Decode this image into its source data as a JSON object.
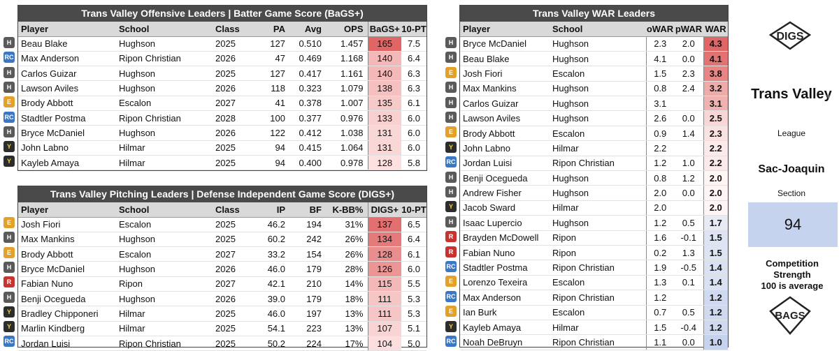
{
  "offense": {
    "title": "Trans Valley Offensive Leaders | Batter Game Score (BaGS+)",
    "headers": [
      "Player",
      "School",
      "Class",
      "PA",
      "Avg",
      "OPS",
      "BaGS+",
      "10-PT"
    ],
    "rows": [
      {
        "player": "Beau Blake",
        "school": "Hughson",
        "logo": "Hughson",
        "class": "2025",
        "pa": "127",
        "avg": "0.510",
        "ops": "1.457",
        "score": "165",
        "pt": "7.5",
        "score_val": 165
      },
      {
        "player": "Max Anderson",
        "school": "Ripon Christian",
        "logo": "Ripon Christian",
        "class": "2026",
        "pa": "47",
        "avg": "0.469",
        "ops": "1.168",
        "score": "140",
        "pt": "6.4",
        "score_val": 140
      },
      {
        "player": "Carlos Guizar",
        "school": "Hughson",
        "logo": "Hughson",
        "class": "2025",
        "pa": "127",
        "avg": "0.417",
        "ops": "1.161",
        "score": "140",
        "pt": "6.3",
        "score_val": 140
      },
      {
        "player": "Lawson Aviles",
        "school": "Hughson",
        "logo": "Hughson",
        "class": "2026",
        "pa": "118",
        "avg": "0.323",
        "ops": "1.079",
        "score": "138",
        "pt": "6.3",
        "score_val": 138
      },
      {
        "player": "Brody Abbott",
        "school": "Escalon",
        "logo": "Escalon",
        "class": "2027",
        "pa": "41",
        "avg": "0.378",
        "ops": "1.007",
        "score": "135",
        "pt": "6.1",
        "score_val": 135
      },
      {
        "player": "Stadtler Postma",
        "school": "Ripon Christian",
        "logo": "Ripon Christian",
        "class": "2028",
        "pa": "100",
        "avg": "0.377",
        "ops": "0.976",
        "score": "133",
        "pt": "6.0",
        "score_val": 133
      },
      {
        "player": "Bryce McDaniel",
        "school": "Hughson",
        "logo": "Hughson",
        "class": "2026",
        "pa": "122",
        "avg": "0.412",
        "ops": "1.038",
        "score": "131",
        "pt": "6.0",
        "score_val": 131
      },
      {
        "player": "John Labno",
        "school": "Hilmar",
        "logo": "Hilmar",
        "class": "2025",
        "pa": "94",
        "avg": "0.415",
        "ops": "1.064",
        "score": "131",
        "pt": "6.0",
        "score_val": 131
      },
      {
        "player": "Kayleb Amaya",
        "school": "Hilmar",
        "logo": "Hilmar",
        "class": "2025",
        "pa": "94",
        "avg": "0.400",
        "ops": "0.978",
        "score": "128",
        "pt": "5.8",
        "score_val": 128
      }
    ]
  },
  "pitching": {
    "title": "Trans Valley Pitching Leaders | Defense Independent Game Score (DIGS+)",
    "headers": [
      "Player",
      "School",
      "Class",
      "IP",
      "BF",
      "K-BB%",
      "DIGS+",
      "10-PT"
    ],
    "rows": [
      {
        "player": "Josh Fiori",
        "school": "Escalon",
        "logo": "Escalon",
        "class": "2025",
        "ip": "46.2",
        "bf": "194",
        "kbb": "31%",
        "score": "137",
        "pt": "6.5",
        "score_val": 137
      },
      {
        "player": "Max Mankins",
        "school": "Hughson",
        "logo": "Hughson",
        "class": "2025",
        "ip": "60.2",
        "bf": "242",
        "kbb": "26%",
        "score": "134",
        "pt": "6.4",
        "score_val": 134
      },
      {
        "player": "Brody Abbott",
        "school": "Escalon",
        "logo": "Escalon",
        "class": "2027",
        "ip": "33.2",
        "bf": "154",
        "kbb": "26%",
        "score": "128",
        "pt": "6.1",
        "score_val": 128
      },
      {
        "player": "Bryce McDaniel",
        "school": "Hughson",
        "logo": "Hughson",
        "class": "2026",
        "ip": "46.0",
        "bf": "179",
        "kbb": "28%",
        "score": "126",
        "pt": "6.0",
        "score_val": 126
      },
      {
        "player": "Fabian Nuno",
        "school": "Ripon",
        "logo": "Ripon",
        "class": "2027",
        "ip": "42.1",
        "bf": "210",
        "kbb": "14%",
        "score": "115",
        "pt": "5.5",
        "score_val": 115
      },
      {
        "player": "Benji Ocegueda",
        "school": "Hughson",
        "logo": "Hughson",
        "class": "2026",
        "ip": "39.0",
        "bf": "179",
        "kbb": "18%",
        "score": "111",
        "pt": "5.3",
        "score_val": 111
      },
      {
        "player": "Bradley Chipponeri",
        "school": "Hilmar",
        "logo": "Hilmar",
        "class": "2025",
        "ip": "46.0",
        "bf": "197",
        "kbb": "13%",
        "score": "111",
        "pt": "5.3",
        "score_val": 111
      },
      {
        "player": "Marlin Kindberg",
        "school": "Hilmar",
        "logo": "Hilmar",
        "class": "2025",
        "ip": "54.1",
        "bf": "223",
        "kbb": "13%",
        "score": "107",
        "pt": "5.1",
        "score_val": 107
      },
      {
        "player": "Jordan Luisi",
        "school": "Ripon Christian",
        "logo": "Ripon Christian",
        "class": "2025",
        "ip": "50.2",
        "bf": "224",
        "kbb": "17%",
        "score": "104",
        "pt": "5.0",
        "score_val": 104
      }
    ]
  },
  "war": {
    "title": "Trans Valley WAR Leaders",
    "headers": [
      "Player",
      "School",
      "oWAR",
      "pWAR",
      "WAR"
    ],
    "rows": [
      {
        "player": "Bryce McDaniel",
        "school": "Hughson",
        "logo": "Hughson",
        "owar": "2.3",
        "pwar": "2.0",
        "war": "4.3",
        "war_val": 4.3
      },
      {
        "player": "Beau Blake",
        "school": "Hughson",
        "logo": "Hughson",
        "owar": "4.1",
        "pwar": "0.0",
        "war": "4.1",
        "war_val": 4.1
      },
      {
        "player": "Josh Fiori",
        "school": "Escalon",
        "logo": "Escalon",
        "owar": "1.5",
        "pwar": "2.3",
        "war": "3.8",
        "war_val": 3.8
      },
      {
        "player": "Max Mankins",
        "school": "Hughson",
        "logo": "Hughson",
        "owar": "0.8",
        "pwar": "2.4",
        "war": "3.2",
        "war_val": 3.2
      },
      {
        "player": "Carlos Guizar",
        "school": "Hughson",
        "logo": "Hughson",
        "owar": "3.1",
        "pwar": "",
        "war": "3.1",
        "war_val": 3.1
      },
      {
        "player": "Lawson Aviles",
        "school": "Hughson",
        "logo": "Hughson",
        "owar": "2.6",
        "pwar": "0.0",
        "war": "2.5",
        "war_val": 2.5
      },
      {
        "player": "Brody Abbott",
        "school": "Escalon",
        "logo": "Escalon",
        "owar": "0.9",
        "pwar": "1.4",
        "war": "2.3",
        "war_val": 2.3
      },
      {
        "player": "John Labno",
        "school": "Hilmar",
        "logo": "Hilmar",
        "owar": "2.2",
        "pwar": "",
        "war": "2.2",
        "war_val": 2.2
      },
      {
        "player": "Jordan Luisi",
        "school": "Ripon Christian",
        "logo": "Ripon Christian",
        "owar": "1.2",
        "pwar": "1.0",
        "war": "2.2",
        "war_val": 2.2
      },
      {
        "player": "Benji Ocegueda",
        "school": "Hughson",
        "logo": "Hughson",
        "owar": "0.8",
        "pwar": "1.2",
        "war": "2.0",
        "war_val": 2.0
      },
      {
        "player": "Andrew Fisher",
        "school": "Hughson",
        "logo": "Hughson",
        "owar": "2.0",
        "pwar": "0.0",
        "war": "2.0",
        "war_val": 2.0
      },
      {
        "player": "Jacob Sward",
        "school": "Hilmar",
        "logo": "Hilmar",
        "owar": "2.0",
        "pwar": "",
        "war": "2.0",
        "war_val": 2.0
      },
      {
        "player": "Isaac Lupercio",
        "school": "Hughson",
        "logo": "Hughson",
        "owar": "1.2",
        "pwar": "0.5",
        "war": "1.7",
        "war_val": 1.7
      },
      {
        "player": "Brayden McDowell",
        "school": "Ripon",
        "logo": "Ripon",
        "owar": "1.6",
        "pwar": "-0.1",
        "war": "1.5",
        "war_val": 1.5
      },
      {
        "player": "Fabian Nuno",
        "school": "Ripon",
        "logo": "Ripon",
        "owar": "0.2",
        "pwar": "1.3",
        "war": "1.5",
        "war_val": 1.5
      },
      {
        "player": "Stadtler Postma",
        "school": "Ripon Christian",
        "logo": "Ripon Christian",
        "owar": "1.9",
        "pwar": "-0.5",
        "war": "1.4",
        "war_val": 1.4
      },
      {
        "player": "Lorenzo Texeira",
        "school": "Escalon",
        "logo": "Escalon",
        "owar": "1.3",
        "pwar": "0.1",
        "war": "1.4",
        "war_val": 1.4
      },
      {
        "player": "Max Anderson",
        "school": "Ripon Christian",
        "logo": "Ripon Christian",
        "owar": "1.2",
        "pwar": "",
        "war": "1.2",
        "war_val": 1.2
      },
      {
        "player": "Ian Burk",
        "school": "Escalon",
        "logo": "Escalon",
        "owar": "0.7",
        "pwar": "0.5",
        "war": "1.2",
        "war_val": 1.2
      },
      {
        "player": "Kayleb Amaya",
        "school": "Hilmar",
        "logo": "Hilmar",
        "owar": "1.5",
        "pwar": "-0.4",
        "war": "1.2",
        "war_val": 1.2
      },
      {
        "player": "Noah DeBruyn",
        "school": "Ripon Christian",
        "logo": "Ripon Christian",
        "owar": "1.1",
        "pwar": "0.0",
        "war": "1.0",
        "war_val": 1.0
      }
    ]
  },
  "side": {
    "digs_logo_text": "DIGS",
    "region": "Trans Valley",
    "league_label": "League",
    "section_value": "Sac-Joaquin",
    "section_label": "Section",
    "competition_value": "94",
    "competition_label_1": "Competition Strength",
    "competition_label_2": "100 is average",
    "bags_logo_text": "BAGS"
  },
  "colors": {
    "header_bg": "#4a4a4a",
    "column_header_bg": "#d9d9d9",
    "high_score": "#e06666",
    "low_score": "#c6d3ee",
    "competition_box": "#c6d3ee"
  }
}
